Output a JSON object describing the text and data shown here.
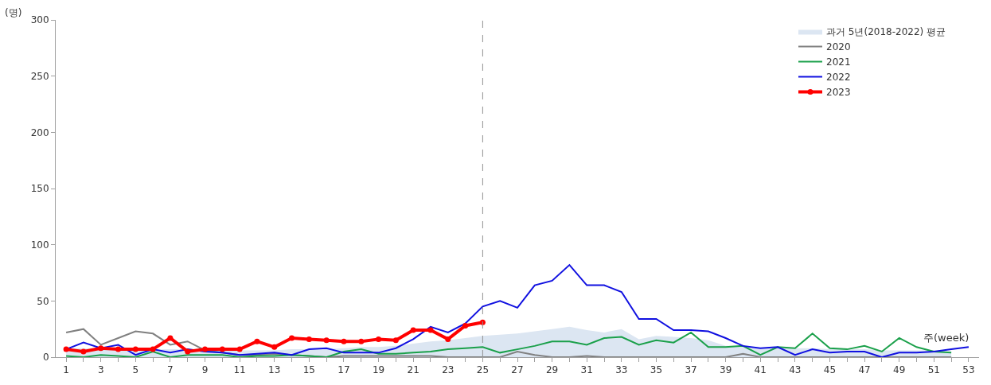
{
  "chart_data": {
    "type": "line",
    "xlabel": "주(week)",
    "ylabel": "(명)",
    "x": [
      1,
      2,
      3,
      4,
      5,
      6,
      7,
      8,
      9,
      10,
      11,
      12,
      13,
      14,
      15,
      16,
      17,
      18,
      19,
      20,
      21,
      22,
      23,
      24,
      25,
      26,
      27,
      28,
      29,
      30,
      31,
      32,
      33,
      34,
      35,
      36,
      37,
      38,
      39,
      40,
      41,
      42,
      43,
      44,
      45,
      46,
      47,
      48,
      49,
      50,
      51,
      52,
      53
    ],
    "series": [
      {
        "name": "과거 5년(2018-2022) 평균",
        "type": "area",
        "color": "#dce6f2",
        "values": [
          8,
          8,
          7,
          7,
          7,
          7,
          7,
          7,
          6,
          6,
          6,
          6,
          6,
          7,
          7,
          7,
          8,
          9,
          9,
          10,
          12,
          14,
          15,
          17,
          19,
          20,
          21,
          23,
          25,
          27,
          24,
          22,
          25,
          16,
          19,
          18,
          17,
          15,
          10,
          10,
          8,
          8,
          8,
          8,
          7,
          7,
          7,
          6,
          6,
          6,
          6,
          5,
          null
        ]
      },
      {
        "name": "2020",
        "color": "#808080",
        "values": [
          22,
          25,
          11,
          17,
          23,
          21,
          11,
          14,
          6,
          4,
          2,
          2,
          3,
          2,
          1,
          0,
          1,
          1,
          1,
          1,
          1,
          1,
          0,
          0,
          0,
          0,
          5,
          2,
          0,
          0,
          1,
          0,
          0,
          0,
          0,
          0,
          0,
          0,
          0,
          3,
          0,
          0,
          0,
          0,
          0,
          0,
          0,
          0,
          0,
          0,
          0,
          0,
          null
        ]
      },
      {
        "name": "2021",
        "color": "#1aa04a",
        "values": [
          1,
          0,
          2,
          1,
          0,
          5,
          0,
          2,
          2,
          2,
          0,
          1,
          1,
          2,
          1,
          0,
          5,
          7,
          3,
          3,
          4,
          5,
          7,
          8,
          9,
          4,
          7,
          10,
          14,
          14,
          11,
          17,
          18,
          11,
          15,
          13,
          22,
          9,
          9,
          10,
          2,
          9,
          8,
          21,
          8,
          7,
          10,
          5,
          17,
          9,
          5,
          4,
          null
        ]
      },
      {
        "name": "2022",
        "color": "#1010e0",
        "values": [
          7,
          13,
          8,
          11,
          2,
          7,
          4,
          7,
          5,
          4,
          2,
          3,
          4,
          2,
          7,
          8,
          4,
          4,
          4,
          8,
          16,
          27,
          22,
          30,
          45,
          50,
          44,
          64,
          68,
          82,
          64,
          64,
          58,
          34,
          34,
          24,
          24,
          23,
          17,
          10,
          8,
          9,
          2,
          7,
          4,
          5,
          5,
          0,
          4,
          4,
          5,
          7,
          9
        ]
      },
      {
        "name": "2023",
        "color": "#ff0000",
        "marker": "circle",
        "values": [
          7,
          5,
          8,
          7,
          7,
          7,
          17,
          5,
          7,
          7,
          7,
          14,
          9,
          17,
          16,
          15,
          14,
          14,
          16,
          15,
          24,
          24,
          16,
          28,
          31,
          null,
          null,
          null,
          null,
          null,
          null,
          null,
          null,
          null,
          null,
          null,
          null,
          null,
          null,
          null,
          null,
          null,
          null,
          null,
          null,
          null,
          null,
          null,
          null,
          null,
          null,
          null,
          null
        ]
      }
    ],
    "xlim": [
      0.4,
      53.6
    ],
    "xticks": [
      1,
      {
        "value": 2,
        "label": null
      },
      3,
      {
        "value": 4,
        "label": null
      },
      5,
      {
        "value": 6,
        "label": null
      },
      7,
      {
        "value": 8,
        "label": null
      },
      9,
      {
        "value": 10,
        "label": null
      },
      11,
      {
        "value": 12,
        "label": null
      },
      13,
      {
        "value": 14,
        "label": null
      },
      15,
      {
        "value": 16,
        "label": null
      },
      17,
      {
        "value": 18,
        "label": null
      },
      19,
      {
        "value": 20,
        "label": null
      },
      21,
      {
        "value": 22,
        "label": null
      },
      23,
      {
        "value": 24,
        "label": null
      },
      25,
      {
        "value": 26,
        "label": null
      },
      27,
      {
        "value": 28,
        "label": null
      },
      29,
      {
        "value": 30,
        "label": null
      },
      31,
      {
        "value": 32,
        "label": null
      },
      33,
      {
        "value": 34,
        "label": null
      },
      35,
      {
        "value": 36,
        "label": null
      },
      37,
      {
        "value": 38,
        "label": null
      },
      39,
      {
        "value": 40,
        "label": null
      },
      41,
      {
        "value": 42,
        "label": null
      },
      43,
      {
        "value": 44,
        "label": null
      },
      45,
      {
        "value": 46,
        "label": null
      },
      47,
      {
        "value": 48,
        "label": null
      },
      49,
      {
        "value": 50,
        "label": null
      },
      51,
      {
        "value": 52,
        "label": null
      },
      53
    ],
    "ylim": [
      0,
      300
    ],
    "yticks": [
      0,
      50,
      100,
      150,
      200,
      250,
      300
    ],
    "ref_lines": [
      {
        "axis": "x",
        "value": 25,
        "color": "#909090",
        "line_style": "dashed"
      }
    ],
    "legend": "top right"
  }
}
